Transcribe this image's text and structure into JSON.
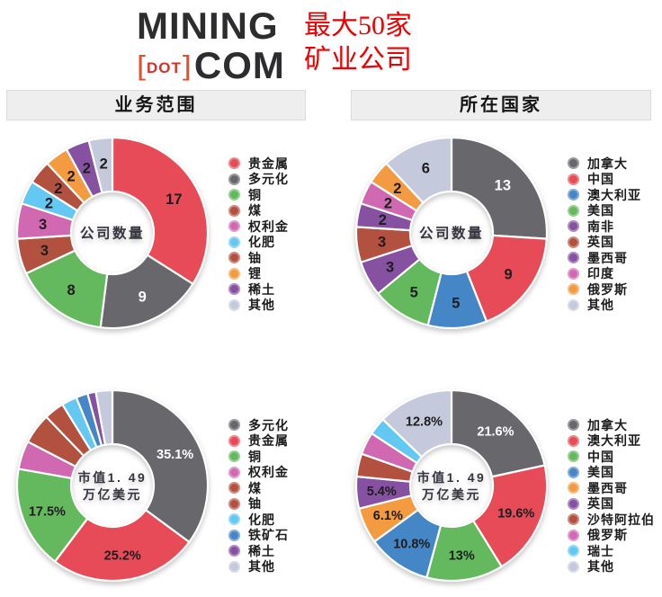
{
  "header": {
    "logo": {
      "mining": "MINING",
      "bracket_left": "[",
      "dot": "DOT",
      "bracket_right": "]",
      "com": "COM"
    },
    "title_line1": "最大50家",
    "title_line2": "矿业公司",
    "title_color": "#ee0000",
    "logo_dark": "#2d2c2e",
    "logo_red": "#d63226"
  },
  "sections": {
    "left_title": "业务范围",
    "right_title": "所在国家"
  },
  "palette": {
    "red": "#e64b57",
    "gray": "#68676c",
    "green": "#64b95e",
    "blue": "#4486c6",
    "light_blue": "#63c8f2",
    "orange": "#f49a41",
    "purple": "#8751a1",
    "brown": "#b35140",
    "pink": "#d169b2",
    "lavender": "#c5c9dc"
  },
  "chart_data": [
    {
      "id": "business-company-count",
      "type": "pie",
      "subtype": "donut",
      "section": "业务范围",
      "center_lines": [
        "公司数量"
      ],
      "total": 50,
      "legend_position": "right",
      "slices": [
        {
          "name": "贵金属",
          "value": 17,
          "label": "17",
          "color": "#e64b57",
          "label_color": "#1d1d1f"
        },
        {
          "name": "多元化",
          "value": 9,
          "label": "9",
          "color": "#68676c",
          "label_color": "#ffffff"
        },
        {
          "name": "铜",
          "value": 8,
          "label": "8",
          "color": "#64b95e",
          "label_color": "#1d1d1f"
        },
        {
          "name": "煤",
          "value": 3,
          "label": "3",
          "color": "#b35140",
          "label_color": "#1d1d1f"
        },
        {
          "name": "权利金",
          "value": 3,
          "label": "3",
          "color": "#d169b2",
          "label_color": "#1d1d1f"
        },
        {
          "name": "化肥",
          "value": 2,
          "label": "2",
          "color": "#63c8f2",
          "label_color": "#1d1d1f"
        },
        {
          "name": "铀",
          "value": 2,
          "label": "2",
          "color": "#b35140",
          "label_color": "#1d1d1f"
        },
        {
          "name": "锂",
          "value": 2,
          "label": "2",
          "color": "#f49a41",
          "label_color": "#1d1d1f"
        },
        {
          "name": "稀土",
          "value": 2,
          "label": "2",
          "color": "#8751a1",
          "label_color": "#1d1d1f"
        },
        {
          "name": "其他",
          "value": 2,
          "label": "2",
          "color": "#c5c9dc",
          "label_color": "#1d1d1f"
        }
      ]
    },
    {
      "id": "country-company-count",
      "type": "pie",
      "subtype": "donut",
      "section": "所在国家",
      "center_lines": [
        "公司数量"
      ],
      "total": 50,
      "legend_position": "right",
      "slices": [
        {
          "name": "加拿大",
          "value": 13,
          "label": "13",
          "color": "#68676c",
          "label_color": "#ffffff"
        },
        {
          "name": "中国",
          "value": 9,
          "label": "9",
          "color": "#e64b57",
          "label_color": "#1d1d1f"
        },
        {
          "name": "澳大利亚",
          "value": 5,
          "label": "5",
          "color": "#4486c6",
          "label_color": "#1d1d1f"
        },
        {
          "name": "美国",
          "value": 5,
          "label": "5",
          "color": "#64b95e",
          "label_color": "#1d1d1f"
        },
        {
          "name": "南非",
          "value": 3,
          "label": "3",
          "color": "#8751a1",
          "label_color": "#1d1d1f"
        },
        {
          "name": "英国",
          "value": 3,
          "label": "3",
          "color": "#b35140",
          "label_color": "#1d1d1f"
        },
        {
          "name": "墨西哥",
          "value": 2,
          "label": "2",
          "color": "#8751a1",
          "label_color": "#1d1d1f"
        },
        {
          "name": "印度",
          "value": 2,
          "label": "2",
          "color": "#d169b2",
          "label_color": "#1d1d1f"
        },
        {
          "name": "俄罗斯",
          "value": 2,
          "label": "2",
          "color": "#f49a41",
          "label_color": "#1d1d1f"
        },
        {
          "name": "其他",
          "value": 6,
          "label": "6",
          "color": "#c5c9dc",
          "label_color": "#1d1d1f"
        }
      ]
    },
    {
      "id": "business-market-cap",
      "type": "pie",
      "subtype": "donut",
      "section": "业务范围",
      "center_lines": [
        "市值1. 49",
        "万亿美元"
      ],
      "total_label": "市值1.49万亿美元",
      "unit": "%",
      "legend_position": "right",
      "slices": [
        {
          "name": "多元化",
          "value": 35.1,
          "label": "35.1%",
          "color": "#68676c",
          "label_color": "#ffffff"
        },
        {
          "name": "贵金属",
          "value": 25.2,
          "label": "25.2%",
          "color": "#e64b57",
          "label_color": "#1d1d1f"
        },
        {
          "name": "铜",
          "value": 17.5,
          "label": "17.5%",
          "color": "#64b95e",
          "label_color": "#1d1d1f"
        },
        {
          "name": "权利金",
          "value": 4.8,
          "label": "",
          "color": "#d169b2",
          "label_color": "#1d1d1f"
        },
        {
          "name": "煤",
          "value": 5.2,
          "label": "",
          "color": "#b35140",
          "label_color": "#1d1d1f"
        },
        {
          "name": "铀",
          "value": 3.4,
          "label": "",
          "color": "#b35140",
          "label_color": "#1d1d1f"
        },
        {
          "name": "化肥",
          "value": 2.6,
          "label": "",
          "color": "#63c8f2",
          "label_color": "#1d1d1f"
        },
        {
          "name": "铁矿石",
          "value": 2.0,
          "label": "",
          "color": "#4486c6",
          "label_color": "#1d1d1f"
        },
        {
          "name": "稀土",
          "value": 1.4,
          "label": "",
          "color": "#8751a1",
          "label_color": "#1d1d1f"
        },
        {
          "name": "其他",
          "value": 2.8,
          "label": "",
          "color": "#c5c9dc",
          "label_color": "#1d1d1f"
        }
      ]
    },
    {
      "id": "country-market-cap",
      "type": "pie",
      "subtype": "donut",
      "section": "所在国家",
      "center_lines": [
        "市值1. 49",
        "万亿美元"
      ],
      "total_label": "市值1.49万亿美元",
      "unit": "%",
      "legend_position": "right",
      "slices": [
        {
          "name": "加拿大",
          "value": 21.6,
          "label": "21.6%",
          "color": "#68676c",
          "label_color": "#ffffff"
        },
        {
          "name": "澳大利亚",
          "value": 19.6,
          "label": "19.6%",
          "color": "#e64b57",
          "label_color": "#1d1d1f"
        },
        {
          "name": "中国",
          "value": 13.0,
          "label": "13%",
          "color": "#64b95e",
          "label_color": "#1d1d1f"
        },
        {
          "name": "美国",
          "value": 10.8,
          "label": "10.8%",
          "color": "#4486c6",
          "label_color": "#1d1d1f"
        },
        {
          "name": "墨西哥",
          "value": 6.1,
          "label": "6.1%",
          "color": "#f49a41",
          "label_color": "#1d1d1f"
        },
        {
          "name": "英国",
          "value": 5.4,
          "label": "5.4%",
          "color": "#8751a1",
          "label_color": "#1d1d1f"
        },
        {
          "name": "沙特阿拉伯",
          "value": 3.9,
          "label": "",
          "color": "#b35140",
          "label_color": "#1d1d1f"
        },
        {
          "name": "俄罗斯",
          "value": 3.8,
          "label": "",
          "color": "#d169b2",
          "label_color": "#1d1d1f"
        },
        {
          "name": "瑞士",
          "value": 3.0,
          "label": "",
          "color": "#63c8f2",
          "label_color": "#1d1d1f"
        },
        {
          "name": "其他",
          "value": 12.8,
          "label": "12.8%",
          "color": "#c5c9dc",
          "label_color": "#1d1d1f"
        }
      ]
    }
  ]
}
